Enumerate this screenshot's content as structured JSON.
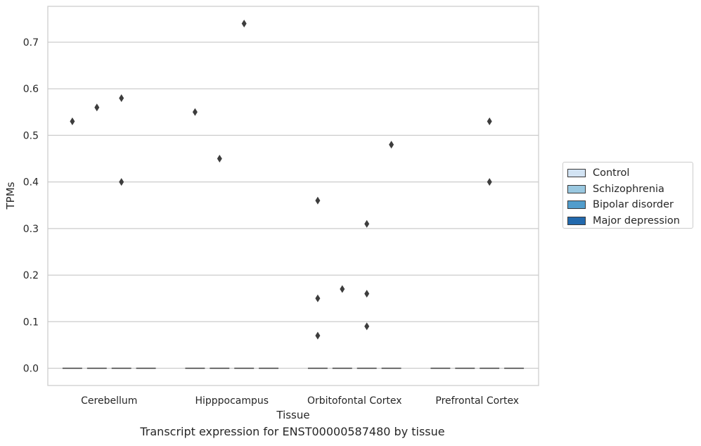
{
  "chart_data": {
    "type": "box",
    "caption": "Transcript expression for ENST00000587480 by tissue",
    "xlabel": "Tissue",
    "ylabel": "TPMs",
    "categories": [
      "Cerebellum",
      "Hipppocampus",
      "Orbitofontal Cortex",
      "Prefrontal Cortex"
    ],
    "ylim": [
      -0.037,
      0.777
    ],
    "yticks": [
      0.0,
      0.1,
      0.2,
      0.3,
      0.4,
      0.5,
      0.6,
      0.7
    ],
    "ytick_labels": [
      "0.0",
      "0.1",
      "0.2",
      "0.3",
      "0.4",
      "0.5",
      "0.6",
      "0.7"
    ],
    "grid": true,
    "legend_position": "right",
    "series": [
      {
        "name": "Control",
        "color": "#d2e3f3",
        "outliers": [
          [
            0.53
          ],
          [
            0.55
          ],
          [
            0.07,
            0.15,
            0.36
          ],
          []
        ]
      },
      {
        "name": "Schizophrenia",
        "color": "#9ac8e0",
        "outliers": [
          [
            0.56
          ],
          [
            0.45
          ],
          [
            0.17
          ],
          []
        ]
      },
      {
        "name": "Bipolar disorder",
        "color": "#529dcc",
        "outliers": [
          [
            0.4,
            0.58
          ],
          [
            0.74
          ],
          [
            0.09,
            0.16,
            0.31
          ],
          [
            0.4,
            0.53
          ]
        ]
      },
      {
        "name": "Major depression",
        "color": "#2269ad",
        "outliers": [
          [],
          [],
          [
            0.48
          ],
          []
        ]
      }
    ]
  }
}
